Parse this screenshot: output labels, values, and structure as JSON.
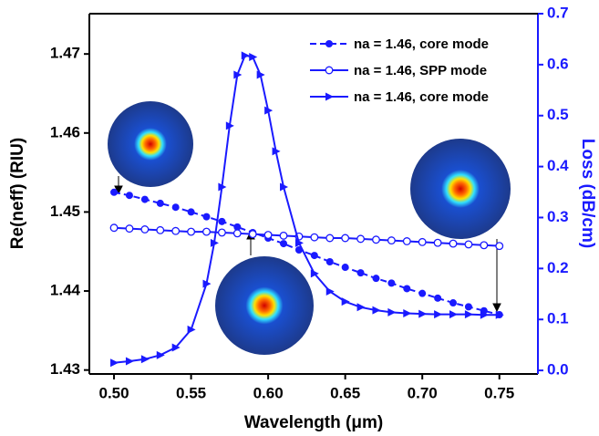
{
  "chart_data": {
    "type": "line",
    "x_label": "Wavelength (μm)",
    "y_label": "Re(neff) (RIU)",
    "y2_label": "Loss (dB/cm)",
    "xlim": [
      0.484,
      0.775
    ],
    "xticks": [
      {
        "value": 0.5,
        "label": "0.50"
      },
      0.55,
      {
        "value": 0.6,
        "label": "0.60"
      },
      0.65,
      {
        "value": 0.7,
        "label": "0.70"
      },
      0.75
    ],
    "ylim": [
      1.4295,
      1.4751
    ],
    "yticks": [
      1.43,
      1.44,
      1.45,
      1.46,
      1.47
    ],
    "y2lim": [
      -0.007,
      0.7
    ],
    "y2ticks": [
      {
        "value": 0,
        "label": "0.0"
      },
      0.1,
      0.2,
      0.3,
      0.4,
      0.5,
      0.6,
      0.7
    ],
    "y_color": "#000000",
    "y2_color": "#1a1aff",
    "series": [
      {
        "name": "na = 1.46, core mode",
        "color": "#1a1aff",
        "marker": "circle-filled",
        "dash": true,
        "x": [
          0.5,
          0.51,
          0.52,
          0.53,
          0.54,
          0.55,
          0.56,
          0.57,
          0.58,
          0.59,
          0.6,
          0.61,
          0.62,
          0.63,
          0.64,
          0.65,
          0.66,
          0.67,
          0.68,
          0.69,
          0.7,
          0.71,
          0.72,
          0.73,
          0.74,
          0.75
        ],
        "values": [
          1.4525,
          1.4521,
          1.4516,
          1.4511,
          1.4506,
          1.45,
          1.4494,
          1.4488,
          1.4481,
          1.4474,
          1.4467,
          1.446,
          1.4452,
          1.4445,
          1.4437,
          1.443,
          1.4423,
          1.4416,
          1.441,
          1.4403,
          1.4397,
          1.4391,
          1.4385,
          1.438,
          1.4375,
          1.437
        ]
      },
      {
        "name": "na = 1.46, SPP mode",
        "color": "#1a1aff",
        "marker": "circle-open",
        "dash": false,
        "x": [
          0.5,
          0.51,
          0.52,
          0.53,
          0.54,
          0.55,
          0.56,
          0.57,
          0.58,
          0.59,
          0.6,
          0.61,
          0.62,
          0.63,
          0.64,
          0.65,
          0.66,
          0.67,
          0.68,
          0.69,
          0.7,
          0.71,
          0.72,
          0.73,
          0.74,
          0.75
        ],
        "values": [
          1.448,
          1.4479,
          1.4478,
          1.4477,
          1.4476,
          1.4475,
          1.4475,
          1.4474,
          1.4473,
          1.4472,
          1.4471,
          1.447,
          1.4469,
          1.4468,
          1.4467,
          1.4467,
          1.4466,
          1.4465,
          1.4464,
          1.4463,
          1.4462,
          1.4461,
          1.446,
          1.4459,
          1.4458,
          1.4457
        ]
      },
      {
        "name": "na = 1.46, core mode",
        "color": "#1a1aff",
        "marker": "triangle-right",
        "dash": false,
        "axis": "y2",
        "x": [
          0.5,
          0.51,
          0.52,
          0.53,
          0.54,
          0.55,
          0.56,
          0.565,
          0.57,
          0.575,
          0.58,
          0.585,
          0.59,
          0.595,
          0.6,
          0.605,
          0.61,
          0.62,
          0.63,
          0.64,
          0.65,
          0.66,
          0.67,
          0.68,
          0.69,
          0.7,
          0.71,
          0.72,
          0.73,
          0.74,
          0.75
        ],
        "values": [
          0.015,
          0.018,
          0.022,
          0.03,
          0.045,
          0.08,
          0.17,
          0.25,
          0.36,
          0.48,
          0.58,
          0.618,
          0.615,
          0.58,
          0.51,
          0.43,
          0.36,
          0.25,
          0.19,
          0.155,
          0.135,
          0.124,
          0.118,
          0.114,
          0.112,
          0.111,
          0.11,
          0.11,
          0.11,
          0.109,
          0.109
        ]
      }
    ]
  }
}
